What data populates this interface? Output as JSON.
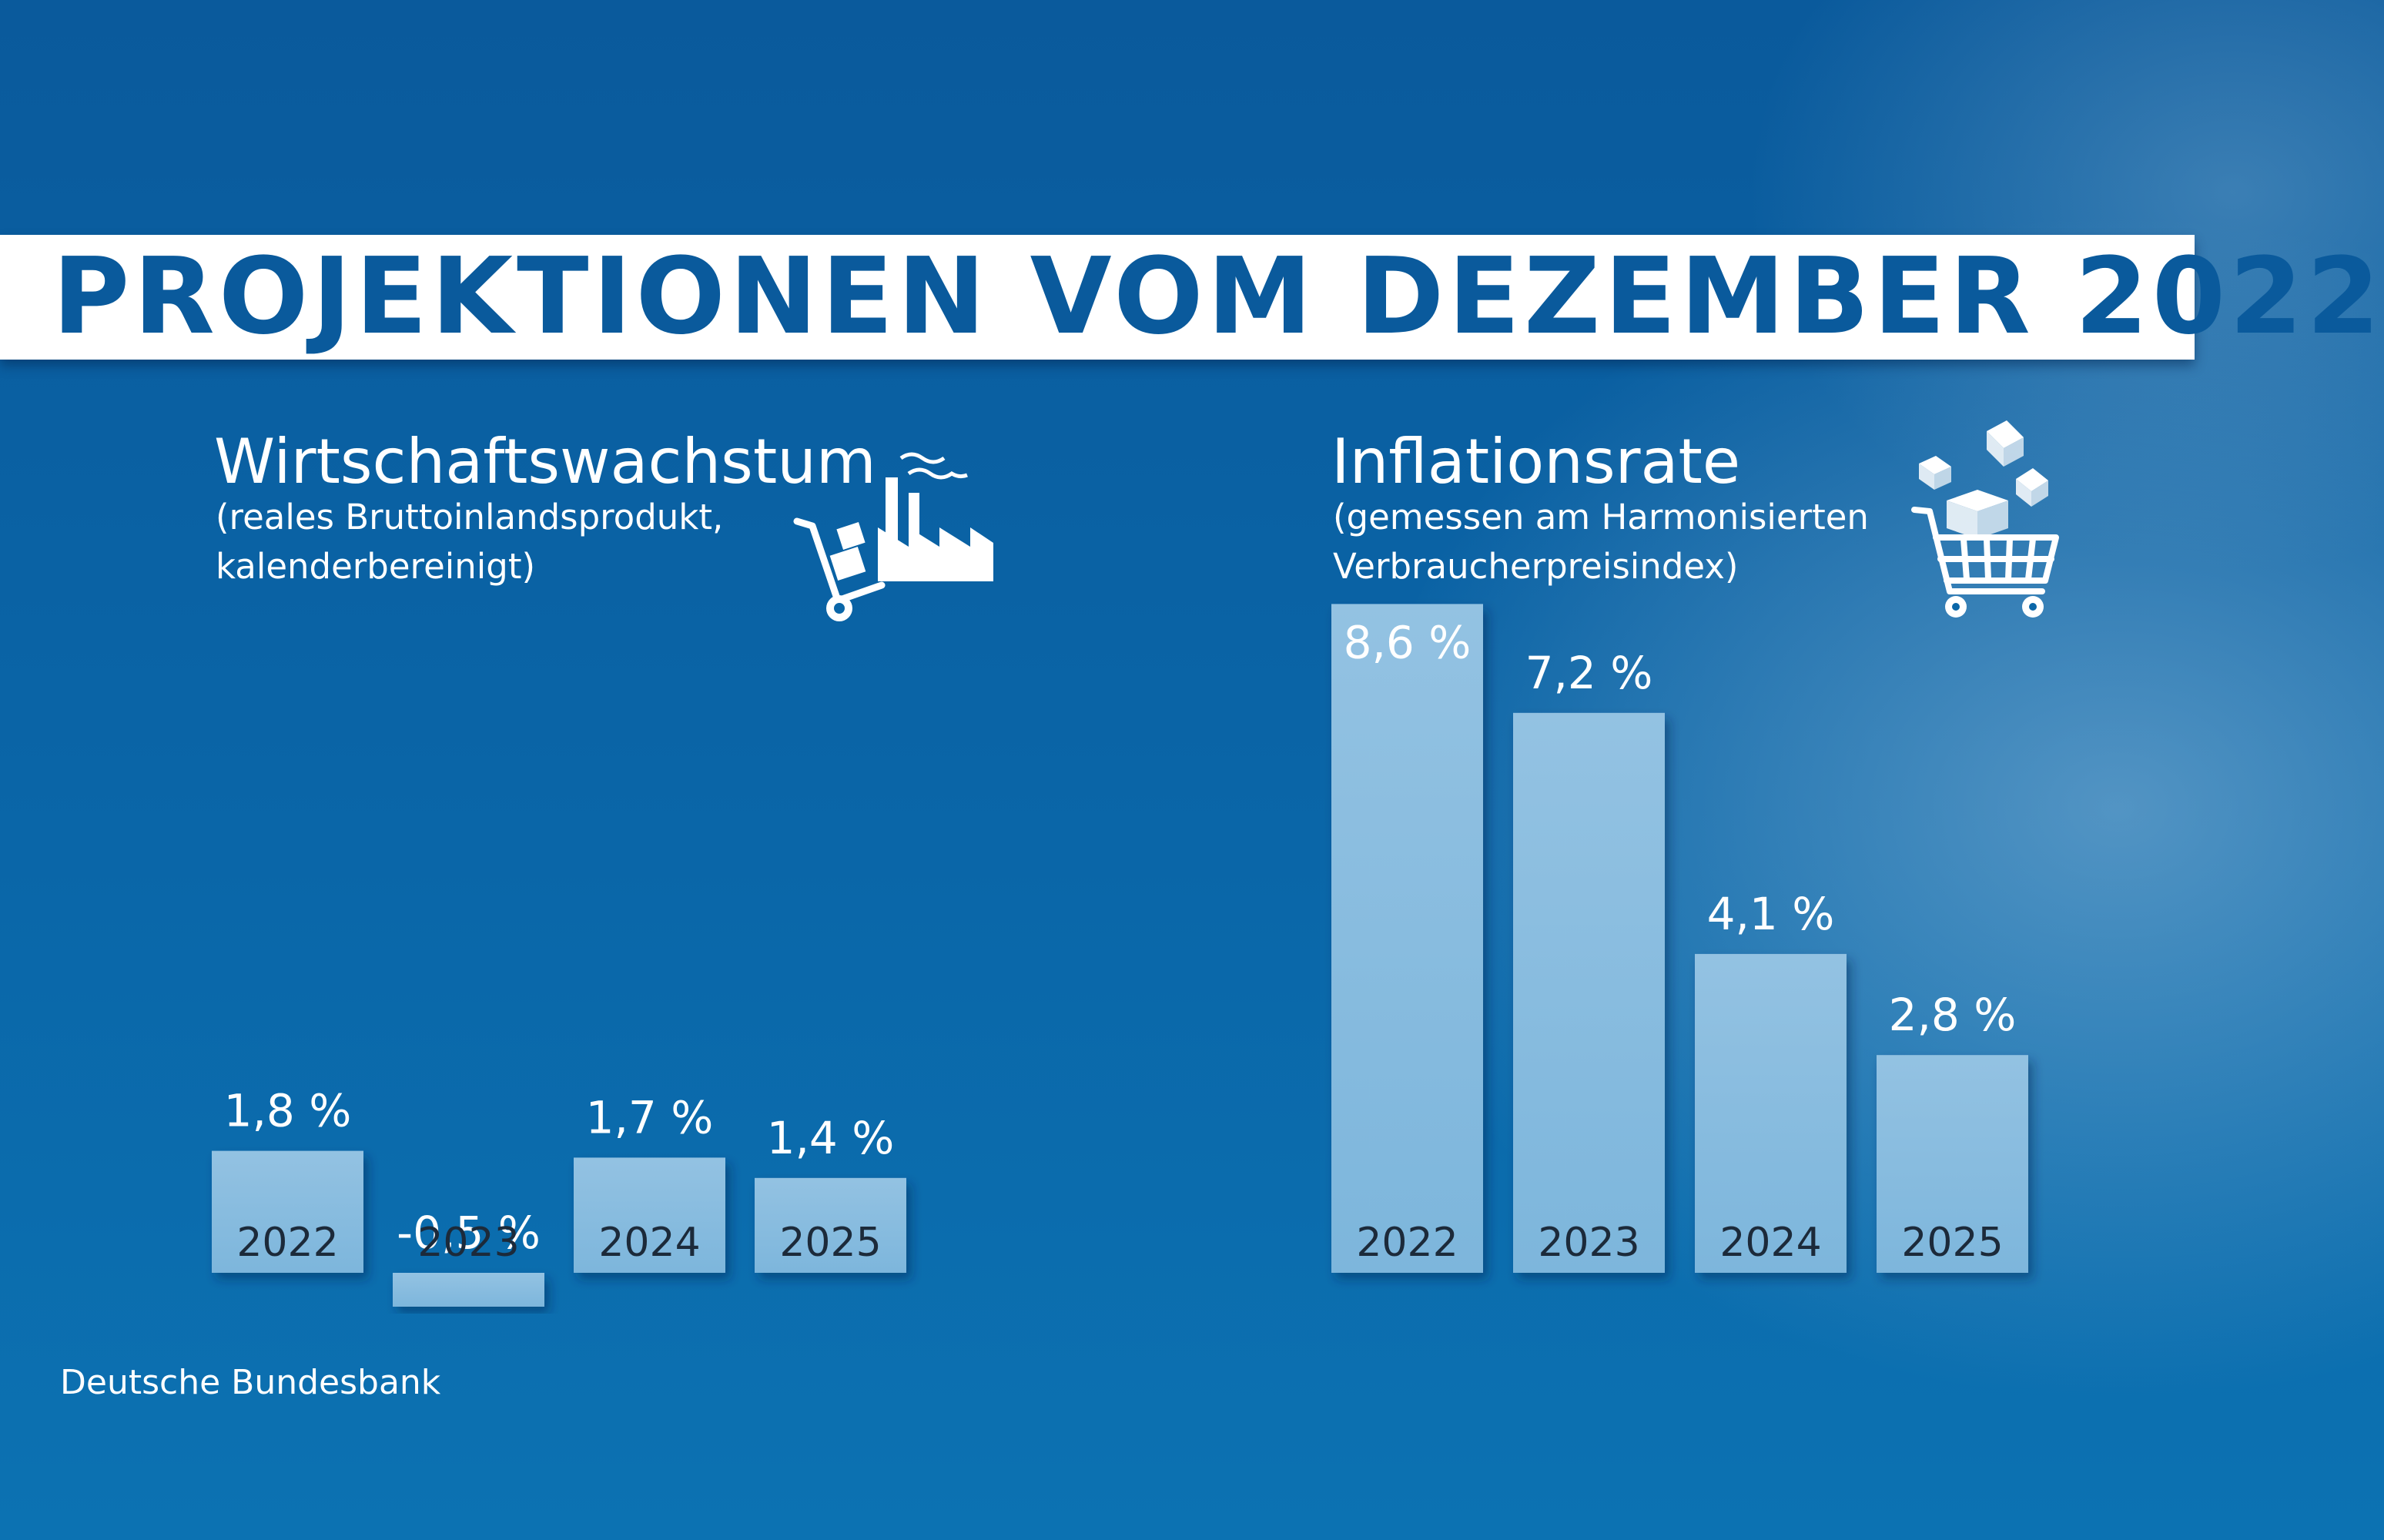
{
  "title": "PROJEKTIONEN VOM DEZEMBER 2022",
  "source": "Deutsche Bundesbank",
  "colors": {
    "bar": "#86bcdf",
    "background": "#0a62a4",
    "banner_text": "#0a5a9c"
  },
  "growth": {
    "title": "Wirtschaftswachstum",
    "subtitle_line1": "(reales Bruttoinlandsprodukt,",
    "subtitle_line2": "kalenderbereinigt)",
    "icon": "factory-with-hand-truck-icon"
  },
  "inflation": {
    "title": "Inflationsrate",
    "subtitle_line1": "(gemessen am Harmonisierten",
    "subtitle_line2": "Verbraucherpreisindex)",
    "icon": "shopping-cart-with-boxes-icon"
  },
  "chart_data": [
    {
      "type": "bar",
      "title": "Wirtschaftswachstum",
      "categories": [
        "2022",
        "2023",
        "2024",
        "2025"
      ],
      "values": [
        1.8,
        -0.5,
        1.7,
        1.4
      ],
      "value_labels": [
        "1,8 %",
        "-0,5 %",
        "1,7 %",
        "1,4 %"
      ],
      "unit": "%"
    },
    {
      "type": "bar",
      "title": "Inflationsrate",
      "categories": [
        "2022",
        "2023",
        "2024",
        "2025"
      ],
      "values": [
        8.6,
        7.2,
        4.1,
        2.8
      ],
      "value_labels": [
        "8,6 %",
        "7,2 %",
        "4,1 %",
        "2,8 %"
      ],
      "unit": "%"
    }
  ]
}
